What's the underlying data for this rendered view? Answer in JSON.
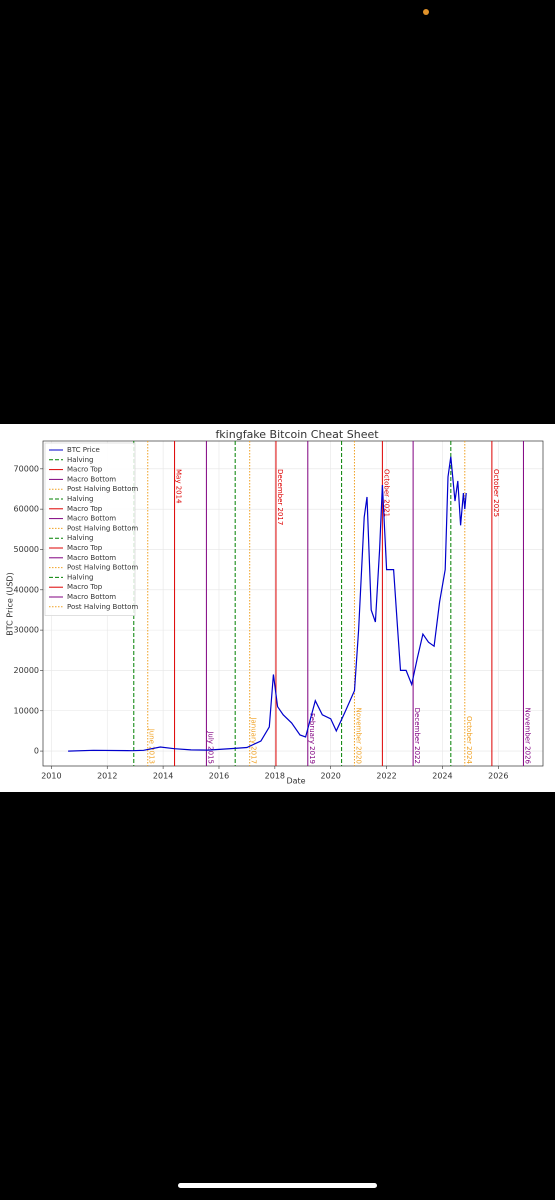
{
  "chart_data": {
    "type": "line",
    "title": "fkingfake Bitcoin Cheat Sheet",
    "x_label": "Date",
    "y_label": "BTC Price (USD)",
    "xlim": [
      2009.7,
      2027.6
    ],
    "xticks": [
      2010,
      2012,
      2014,
      2016,
      2018,
      2020,
      2022,
      2024,
      2026
    ],
    "ylim": [
      -3700,
      76900
    ],
    "yticks": [
      0,
      10000,
      20000,
      30000,
      40000,
      50000,
      60000,
      70000
    ],
    "grid": true,
    "legend": "upper left",
    "series": [
      {
        "name": "BTC Price",
        "color": "#0000cc",
        "x": [
          2010.6,
          2011.5,
          2012.9,
          2013.3,
          2013.9,
          2014.4,
          2015.0,
          2015.6,
          2016.5,
          2017.0,
          2017.5,
          2017.8,
          2017.95,
          2018.1,
          2018.3,
          2018.6,
          2018.9,
          2019.1,
          2019.45,
          2019.7,
          2020.0,
          2020.2,
          2020.5,
          2020.85,
          2021.0,
          2021.2,
          2021.3,
          2021.45,
          2021.6,
          2021.75,
          2021.85,
          2022.0,
          2022.25,
          2022.4,
          2022.5,
          2022.7,
          2022.9,
          2023.1,
          2023.3,
          2023.5,
          2023.7,
          2023.9,
          2024.1,
          2024.2,
          2024.3,
          2024.45,
          2024.55,
          2024.65,
          2024.75,
          2024.8,
          2024.85
        ],
        "values": [
          0,
          200,
          100,
          200,
          1000,
          600,
          300,
          250,
          650,
          900,
          2500,
          6000,
          19000,
          11000,
          9000,
          7000,
          4000,
          3500,
          12500,
          9000,
          8000,
          5000,
          9500,
          15000,
          30000,
          58000,
          63000,
          35000,
          32000,
          50000,
          66000,
          45000,
          45000,
          30000,
          20000,
          20000,
          16500,
          23000,
          29000,
          27000,
          26000,
          37000,
          45000,
          68000,
          73000,
          62000,
          67000,
          56000,
          64000,
          60000,
          64000
        ]
      }
    ],
    "vlines": [
      {
        "name": "Halving",
        "color": "#008000",
        "style": "dashed",
        "x": 2012.95
      },
      {
        "name": "Macro Top",
        "color": "#dd0000",
        "style": "solid",
        "x": 2014.41,
        "label": "May 2014"
      },
      {
        "name": "Macro Bottom",
        "color": "#800080",
        "style": "solid",
        "x": 2015.55,
        "label": "July 2015"
      },
      {
        "name": "Post Halving Bottom",
        "color": "#f0a020",
        "style": "dotted",
        "x": 2013.45,
        "label": "June 2013"
      },
      {
        "name": "Halving",
        "color": "#008000",
        "style": "dashed",
        "x": 2016.58
      },
      {
        "name": "Macro Top",
        "color": "#dd0000",
        "style": "solid",
        "x": 2018.04,
        "label": "December 2017"
      },
      {
        "name": "Macro Bottom",
        "color": "#800080",
        "style": "solid",
        "x": 2019.18,
        "label": "February 2019"
      },
      {
        "name": "Post Halving Bottom",
        "color": "#f0a020",
        "style": "dotted",
        "x": 2017.1,
        "label": "January 2017"
      },
      {
        "name": "Halving",
        "color": "#008000",
        "style": "dashed",
        "x": 2020.39
      },
      {
        "name": "Macro Top",
        "color": "#dd0000",
        "style": "solid",
        "x": 2021.85,
        "label": "October 2021"
      },
      {
        "name": "Macro Bottom",
        "color": "#800080",
        "style": "solid",
        "x": 2022.95,
        "label": "December 2022"
      },
      {
        "name": "Post Halving Bottom",
        "color": "#f0a020",
        "style": "dotted",
        "x": 2020.85,
        "label": "November 2020"
      },
      {
        "name": "Halving",
        "color": "#008000",
        "style": "dashed",
        "x": 2024.3
      },
      {
        "name": "Macro Top",
        "color": "#dd0000",
        "style": "solid",
        "x": 2025.77,
        "label": "October 2025"
      },
      {
        "name": "Macro Bottom",
        "color": "#800080",
        "style": "solid",
        "x": 2026.9,
        "label": "November 2026"
      },
      {
        "name": "Post Halving Bottom",
        "color": "#f0a020",
        "style": "dotted",
        "x": 2024.8,
        "label": "October 2024"
      }
    ]
  }
}
